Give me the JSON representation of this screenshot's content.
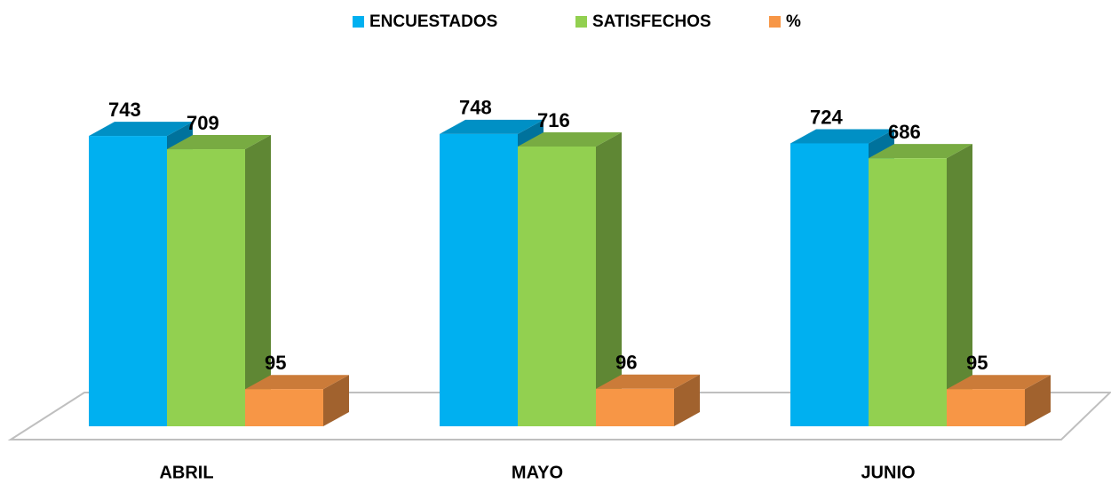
{
  "chart_data": {
    "type": "bar3d",
    "categories": [
      "ABRIL",
      "MAYO",
      "JUNIO"
    ],
    "series": [
      {
        "name": "ENCUESTADOS",
        "color": "#00b0f0",
        "values": [
          743,
          748,
          724
        ]
      },
      {
        "name": "SATISFECHOS",
        "color": "#92d050",
        "values": [
          709,
          716,
          686
        ]
      },
      {
        "name": "%",
        "color": "#f79646",
        "values": [
          95,
          96,
          95
        ]
      }
    ],
    "ylim": [
      0,
      800
    ],
    "legend": "top"
  }
}
